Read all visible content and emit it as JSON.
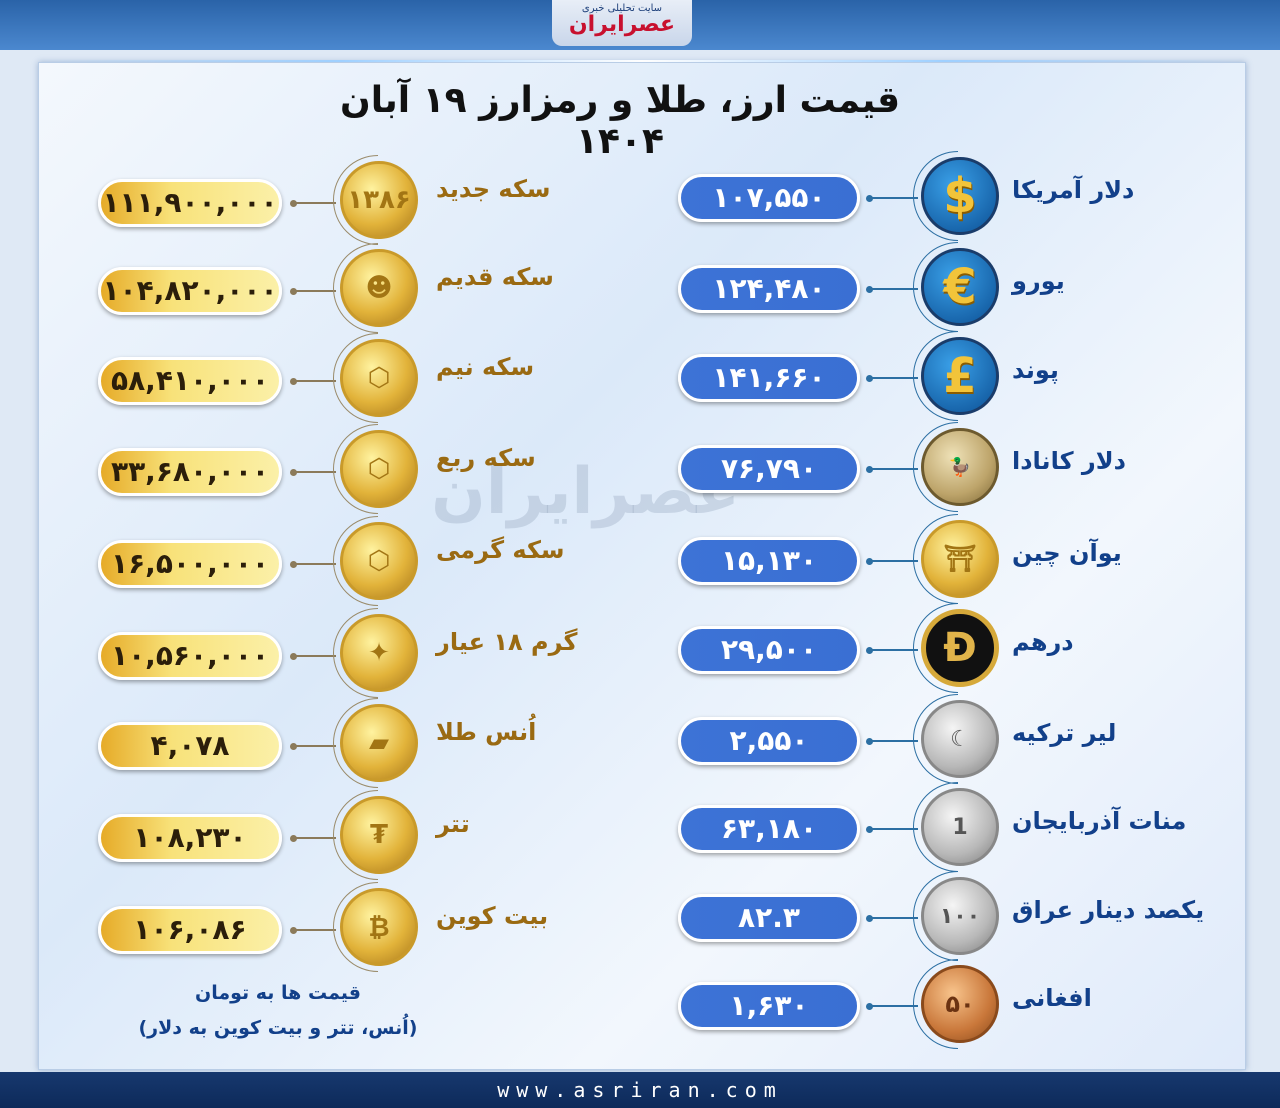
{
  "header": {
    "site_subtitle": "سایت تحلیلی خبری",
    "site_name": "عصرایران"
  },
  "title": "قیمت ارز، طلا و رمزارز ۱۹ آبان ۱۴۰۴",
  "watermark": "عصرایران",
  "colors": {
    "gold_accent": "#f8e27a",
    "blue_accent": "#3d73d6",
    "label_gold": "#9a6a12",
    "label_blue": "#12408a"
  },
  "gold_items": [
    {
      "label": "سکه جدید",
      "value": "۱۱۱,۹۰۰,۰۰۰",
      "icon": "gold-coin-emami-new-icon"
    },
    {
      "label": "سکه قدیم",
      "value": "۱۰۴,۸۲۰,۰۰۰",
      "icon": "gold-coin-bahar-azadi-icon"
    },
    {
      "label": "سکه نیم",
      "value": "۵۸,۴۱۰,۰۰۰",
      "icon": "gold-coin-half-icon"
    },
    {
      "label": "سکه ربع",
      "value": "۳۳,۶۸۰,۰۰۰",
      "icon": "gold-coin-quarter-icon"
    },
    {
      "label": "سکه گرمی",
      "value": "۱۶,۵۰۰,۰۰۰",
      "icon": "gold-coin-gram-icon"
    },
    {
      "label": "گرم ۱۸ عیار",
      "value": "۱۰,۵۶۰,۰۰۰",
      "icon": "gold-jewelry-icon"
    },
    {
      "label": "اُنس طلا",
      "value": "۴,۰۷۸",
      "icon": "gold-bar-icon"
    },
    {
      "label": "تتر",
      "value": "۱۰۸,۲۳۰",
      "icon": "tether-icon"
    },
    {
      "label": "بیت کوین",
      "value": "۱۰۶,۰۸۶",
      "icon": "bitcoin-icon"
    }
  ],
  "currency_items": [
    {
      "label": "دلار آمریکا",
      "value": "۱۰۷,۵۵۰",
      "icon": "dollar-icon"
    },
    {
      "label": "یورو",
      "value": "۱۲۴,۴۸۰",
      "icon": "euro-icon"
    },
    {
      "label": "پوند",
      "value": "۱۴۱,۶۶۰",
      "icon": "pound-icon"
    },
    {
      "label": "دلار کانادا",
      "value": "۷۶,۷۹۰",
      "icon": "canadian-dollar-coin-icon"
    },
    {
      "label": "یوآن چین",
      "value": "۱۵,۱۳۰",
      "icon": "yuan-coin-icon"
    },
    {
      "label": "درهم",
      "value": "۲۹,۵۰۰",
      "icon": "dirham-icon"
    },
    {
      "label": "لیر ترکیه",
      "value": "۲,۵۵۰",
      "icon": "turkish-lira-coin-icon"
    },
    {
      "label": "منات آذربایجان",
      "value": "۶۳,۱۸۰",
      "icon": "manat-coin-icon"
    },
    {
      "label": "یکصد دینار عراق",
      "value": "۸۲.۳",
      "icon": "iraqi-dinar-coin-icon"
    },
    {
      "label": "افغانی",
      "value": "۱,۶۳۰",
      "icon": "afghani-coin-icon"
    }
  ],
  "notes": {
    "line1": "قیمت ها به تومان",
    "line2": "(اُنس، تتر و بیت کوین به دلار)"
  },
  "footer": {
    "url": "www.asriran.com"
  }
}
